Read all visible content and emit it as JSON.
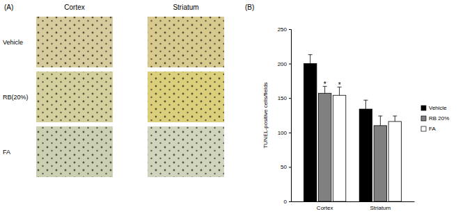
{
  "chart_data": {
    "type": "bar",
    "title": "(B)",
    "y_label": "TUNEL-positive cells/fields",
    "categories": [
      "Cortex",
      "Striatum"
    ],
    "series": [
      {
        "name": "Vehicle",
        "color": "#000000",
        "values": [
          200,
          134
        ],
        "errors": [
          13,
          13
        ]
      },
      {
        "name": "RB 20%",
        "color": "#808080",
        "values": [
          157,
          110
        ],
        "errors": [
          10,
          14
        ]
      },
      {
        "name": "FA",
        "color": "#ffffff",
        "values": [
          154,
          116
        ],
        "errors": [
          12,
          8
        ]
      }
    ],
    "annotations": [
      {
        "text": "*",
        "series": 1,
        "category": 0
      },
      {
        "text": "*",
        "series": 2,
        "category": 0
      }
    ],
    "ylim": [
      0,
      250
    ],
    "yticks": [
      0,
      50,
      100,
      150,
      200,
      250
    ],
    "grid": false,
    "legend": "right"
  },
  "image_panel": {
    "label": "(A)",
    "columns": [
      "Cortex",
      "Striatum"
    ],
    "rows": [
      "Vehicle",
      "RB(20%)",
      "FA"
    ]
  }
}
